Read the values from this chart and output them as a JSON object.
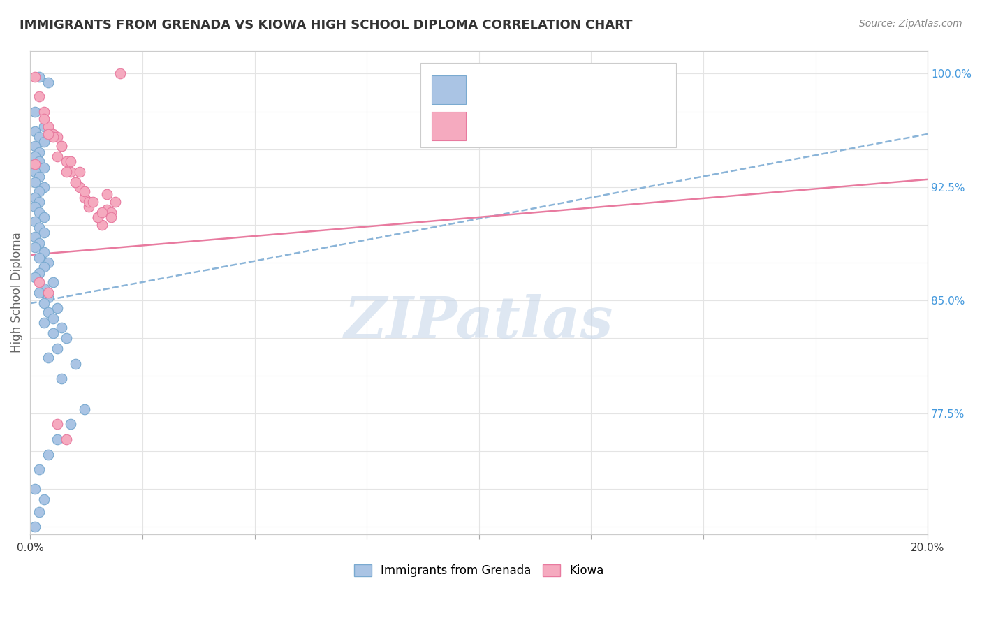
{
  "title": "IMMIGRANTS FROM GRENADA VS KIOWA HIGH SCHOOL DIPLOMA CORRELATION CHART",
  "source_text": "Source: ZipAtlas.com",
  "ylabel": "High School Diploma",
  "xlim": [
    0.0,
    0.2
  ],
  "ylim": [
    0.695,
    1.015
  ],
  "xticks": [
    0.0,
    0.025,
    0.05,
    0.075,
    0.1,
    0.125,
    0.15,
    0.175,
    0.2
  ],
  "xticklabels": [
    "0.0%",
    "",
    "",
    "",
    "",
    "",
    "",
    "",
    "20.0%"
  ],
  "yticks": [
    0.7,
    0.725,
    0.75,
    0.775,
    0.8,
    0.825,
    0.85,
    0.875,
    0.9,
    0.925,
    0.95,
    0.975,
    1.0
  ],
  "yticklabels_right": [
    "",
    "",
    "",
    "77.5%",
    "",
    "",
    "85.0%",
    "",
    "",
    "92.5%",
    "",
    "",
    "100.0%"
  ],
  "blue_color": "#aac4e4",
  "pink_color": "#f5aabf",
  "blue_edge_color": "#7aaad0",
  "pink_edge_color": "#e87a9f",
  "blue_line_color": "#8ab4d8",
  "pink_line_color": "#e87a9f",
  "watermark": "ZIPatlas",
  "watermark_color": "#c8d8ea",
  "background_color": "#ffffff",
  "grid_color": "#e4e4e4",
  "title_color": "#333333",
  "axis_label_color": "#666666",
  "tick_color_right": "#4499dd",
  "source_color": "#888888",
  "legend_text_color": "#3388cc",
  "scatter_blue_x": [
    0.002,
    0.004,
    0.001,
    0.003,
    0.001,
    0.002,
    0.003,
    0.001,
    0.002,
    0.001,
    0.002,
    0.003,
    0.001,
    0.002,
    0.001,
    0.003,
    0.002,
    0.001,
    0.002,
    0.001,
    0.002,
    0.003,
    0.001,
    0.002,
    0.003,
    0.001,
    0.002,
    0.001,
    0.003,
    0.002,
    0.004,
    0.003,
    0.002,
    0.001,
    0.005,
    0.003,
    0.002,
    0.004,
    0.003,
    0.006,
    0.004,
    0.005,
    0.003,
    0.007,
    0.005,
    0.008,
    0.006,
    0.004,
    0.01,
    0.007,
    0.012,
    0.009,
    0.006,
    0.004,
    0.002,
    0.001,
    0.003,
    0.002,
    0.001
  ],
  "scatter_blue_y": [
    0.998,
    0.994,
    0.975,
    0.965,
    0.962,
    0.958,
    0.955,
    0.952,
    0.948,
    0.945,
    0.942,
    0.938,
    0.935,
    0.932,
    0.928,
    0.925,
    0.922,
    0.918,
    0.915,
    0.912,
    0.908,
    0.905,
    0.902,
    0.898,
    0.895,
    0.892,
    0.888,
    0.885,
    0.882,
    0.878,
    0.875,
    0.872,
    0.868,
    0.865,
    0.862,
    0.858,
    0.855,
    0.852,
    0.848,
    0.845,
    0.842,
    0.838,
    0.835,
    0.832,
    0.828,
    0.825,
    0.818,
    0.812,
    0.808,
    0.798,
    0.778,
    0.768,
    0.758,
    0.748,
    0.738,
    0.725,
    0.718,
    0.71,
    0.7
  ],
  "scatter_pink_x": [
    0.001,
    0.002,
    0.003,
    0.004,
    0.005,
    0.006,
    0.007,
    0.008,
    0.009,
    0.01,
    0.011,
    0.012,
    0.013,
    0.015,
    0.016,
    0.017,
    0.018,
    0.019,
    0.02,
    0.003,
    0.005,
    0.007,
    0.009,
    0.011,
    0.013,
    0.015,
    0.017,
    0.004,
    0.006,
    0.008,
    0.01,
    0.012,
    0.014,
    0.016,
    0.018,
    0.002,
    0.004,
    0.006,
    0.008,
    0.001
  ],
  "scatter_pink_y": [
    0.998,
    0.985,
    0.975,
    0.965,
    0.96,
    0.958,
    0.952,
    0.942,
    0.935,
    0.928,
    0.925,
    0.918,
    0.912,
    0.905,
    0.9,
    0.91,
    0.908,
    0.915,
    1.0,
    0.97,
    0.958,
    0.952,
    0.942,
    0.935,
    0.915,
    0.905,
    0.92,
    0.96,
    0.945,
    0.935,
    0.928,
    0.922,
    0.915,
    0.908,
    0.905,
    0.862,
    0.855,
    0.768,
    0.758,
    0.94
  ],
  "blue_trend_x0": 0.0,
  "blue_trend_x1": 0.2,
  "blue_trend_y0": 0.848,
  "blue_trend_y1": 0.96,
  "pink_trend_x0": 0.0,
  "pink_trend_x1": 0.2,
  "pink_trend_y0": 0.88,
  "pink_trend_y1": 0.93
}
